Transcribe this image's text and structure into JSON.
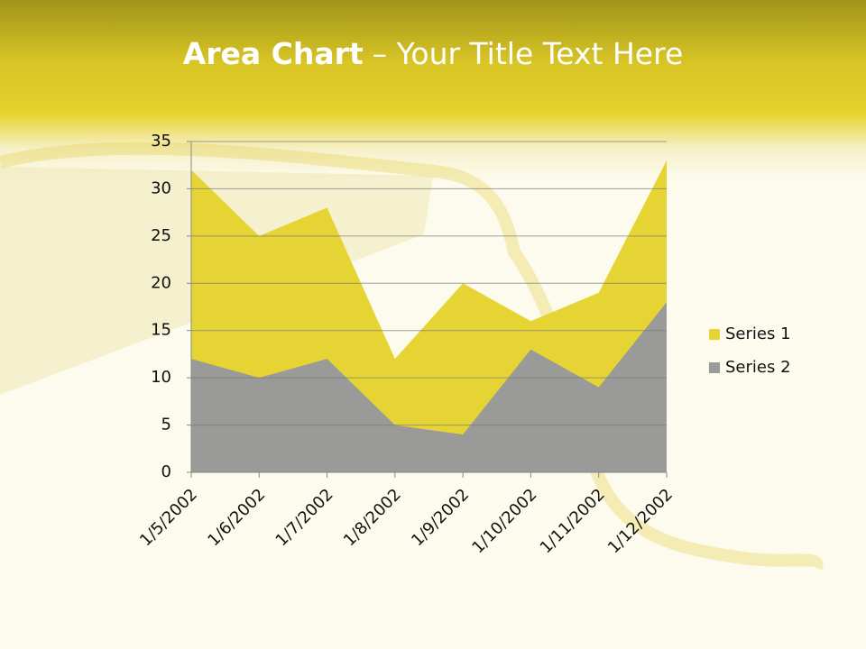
{
  "chart_data": {
    "type": "area",
    "title": {
      "bold": "Area Chart",
      "rest": "– Your Title Text Here"
    },
    "categories": [
      "1/5/2002",
      "1/6/2002",
      "1/7/2002",
      "1/8/2002",
      "1/9/2002",
      "1/10/2002",
      "1/11/2002",
      "1/12/2002"
    ],
    "series": [
      {
        "name": "Series 1",
        "color": "#e6d435",
        "values": [
          32,
          25,
          28,
          12,
          20,
          16,
          19,
          33
        ]
      },
      {
        "name": "Series 2",
        "color": "#9a9a98",
        "values": [
          12,
          10,
          12,
          5,
          4,
          13,
          9,
          18
        ]
      }
    ],
    "ylim": [
      0,
      35
    ],
    "yticks": [
      0,
      5,
      10,
      15,
      20,
      25,
      30,
      35
    ],
    "grid": true,
    "legend": "right"
  }
}
